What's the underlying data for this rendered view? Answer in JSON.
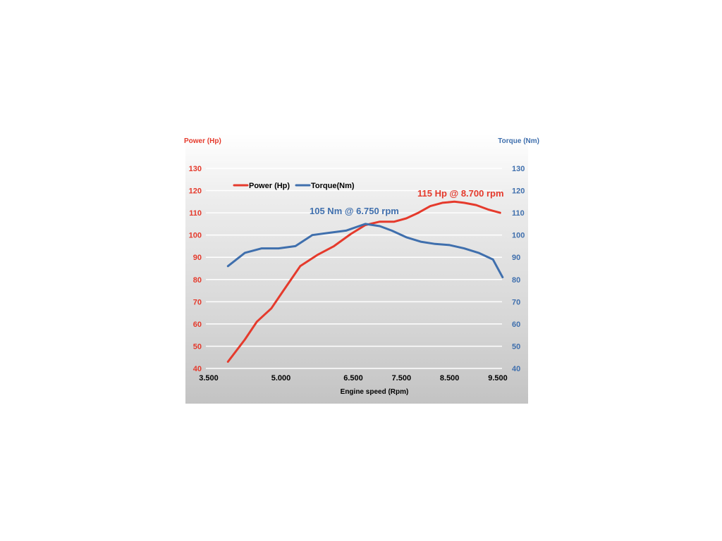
{
  "chart_data": {
    "type": "line",
    "xlabel": "Engine speed (Rpm)",
    "ylabel_left": "Power (Hp)",
    "ylabel_right": "Torque (Nm)",
    "xlim": [
      3500,
      9500
    ],
    "x_ticks": [
      "3.500",
      "5.000",
      "6.500",
      "7.500",
      "8.500",
      "9.500"
    ],
    "x_tick_values": [
      3500,
      5000,
      6500,
      7500,
      8500,
      9500
    ],
    "ylim": [
      40,
      130
    ],
    "y_ticks": [
      40,
      50,
      60,
      70,
      80,
      90,
      100,
      110,
      120,
      130
    ],
    "grid": true,
    "legend_position": "top-left",
    "colors": {
      "power": "#e53a2c",
      "torque": "#3f6fad",
      "axis_text": "#000000"
    },
    "series": [
      {
        "name": "Power (Hp)",
        "axis": "left",
        "color": "#e53a2c",
        "x": [
          3900,
          4250,
          4500,
          4800,
          5050,
          5400,
          5750,
          6100,
          6450,
          6750,
          7050,
          7350,
          7600,
          7850,
          8100,
          8350,
          8600,
          8800,
          9050,
          9300,
          9550
        ],
        "y": [
          43,
          53,
          61,
          67,
          75,
          86,
          91,
          95,
          100.5,
          104.5,
          106,
          106,
          107.5,
          110,
          113,
          114.5,
          115,
          114.5,
          113.5,
          111.5,
          110
        ]
      },
      {
        "name": "Torque(Nm)",
        "axis": "right",
        "color": "#3f6fad",
        "x": [
          3900,
          4250,
          4600,
          4950,
          5300,
          5650,
          6000,
          6350,
          6750,
          7050,
          7300,
          7600,
          7900,
          8200,
          8500,
          8800,
          9100,
          9400,
          9600
        ],
        "y": [
          86,
          92,
          94,
          94,
          95,
          100,
          101,
          102,
          105,
          104,
          102,
          99,
          97,
          96,
          95.5,
          94,
          92,
          89,
          81
        ]
      }
    ],
    "annotations": [
      {
        "text": "115 Hp @ 8.700 rpm",
        "color": "#e53a2c"
      },
      {
        "text": "105 Nm @ 6.750 rpm",
        "color": "#3f6fad"
      }
    ]
  }
}
